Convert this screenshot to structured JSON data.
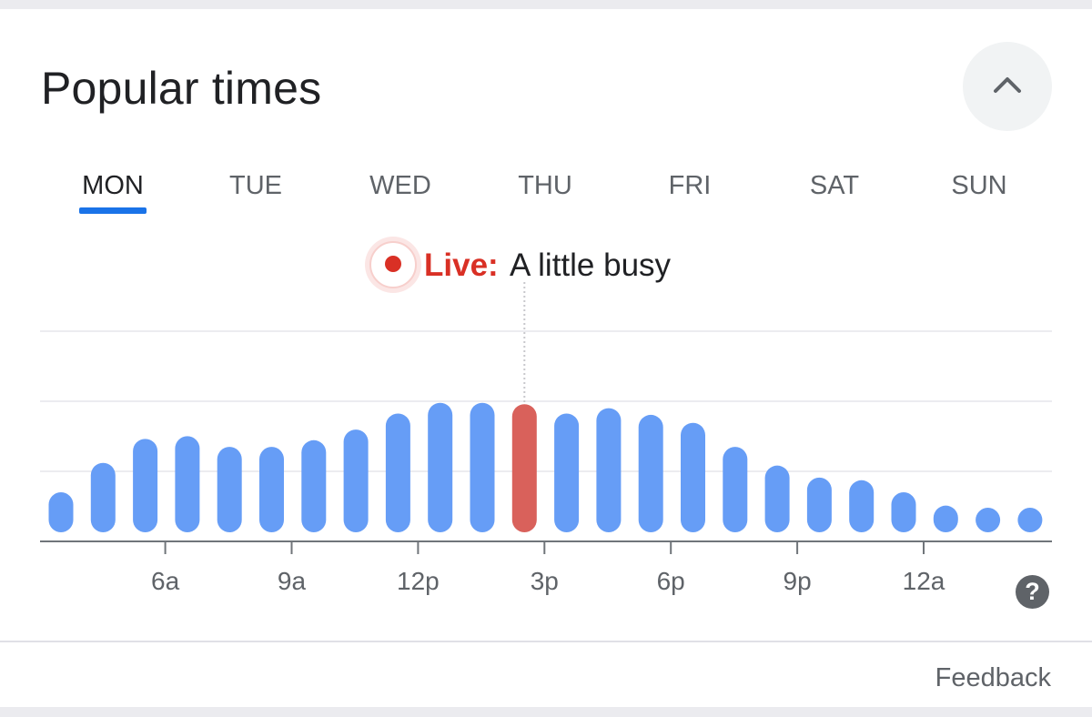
{
  "header": {
    "title": "Popular times"
  },
  "days": [
    "MON",
    "TUE",
    "WED",
    "THU",
    "FRI",
    "SAT",
    "SUN"
  ],
  "selected_day": "MON",
  "live": {
    "label": "Live:",
    "status": "A little busy"
  },
  "feedback_label": "Feedback",
  "help_label": "?",
  "colors": {
    "bar": "#669df6",
    "live_bar": "#d9615b",
    "accent": "#1a73e8",
    "live": "#d93025"
  },
  "chart_data": {
    "type": "bar",
    "x": [
      "4a",
      "5a",
      "6a",
      "7a",
      "8a",
      "9a",
      "10a",
      "11a",
      "12p",
      "1p",
      "2p",
      "3p",
      "4p",
      "5p",
      "6p",
      "7p",
      "8p",
      "9p",
      "10p",
      "11p",
      "12a",
      "1a",
      "2a",
      "3a"
    ],
    "values": [
      30,
      52,
      70,
      72,
      64,
      64,
      69,
      77,
      89,
      97,
      97,
      96,
      89,
      93,
      88,
      82,
      64,
      50,
      41,
      39,
      30,
      20,
      14,
      15
    ],
    "highlight_index": 11,
    "tick_labels": [
      {
        "index": 2,
        "label": "6a"
      },
      {
        "index": 5,
        "label": "9a"
      },
      {
        "index": 8,
        "label": "12p"
      },
      {
        "index": 11,
        "label": "3p"
      },
      {
        "index": 14,
        "label": "6p"
      },
      {
        "index": 17,
        "label": "9p"
      },
      {
        "index": 20,
        "label": "12a"
      }
    ],
    "ylim": [
      0,
      150
    ],
    "grid": true
  }
}
